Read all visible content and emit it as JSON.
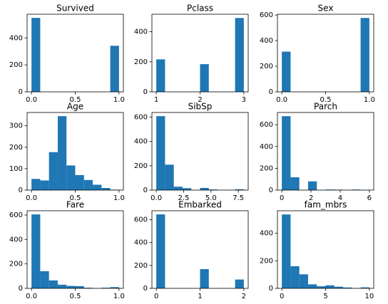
{
  "chart_data": [
    {
      "type": "histogram",
      "title": "Survived",
      "color": "#1f77b4",
      "bins": [
        0,
        0.1,
        0.2,
        0.3,
        0.4,
        0.5,
        0.6,
        0.7,
        0.8,
        0.9,
        1.0
      ],
      "counts": [
        549,
        0,
        0,
        0,
        0,
        0,
        0,
        0,
        0,
        342
      ],
      "xlim": [
        -0.05,
        1.05
      ],
      "xticks": [
        {
          "value": 0,
          "label": "0.0"
        },
        0.5,
        {
          "value": 1,
          "label": "1.0"
        }
      ],
      "ylim": [
        0,
        576
      ],
      "yticks": [
        0,
        200,
        400
      ]
    },
    {
      "type": "histogram",
      "title": "Pclass",
      "color": "#1f77b4",
      "bins": [
        1,
        1.2,
        1.4,
        1.6,
        1.8,
        2,
        2.2,
        2.4,
        2.6,
        2.8,
        3
      ],
      "counts": [
        216,
        0,
        0,
        0,
        0,
        184,
        0,
        0,
        0,
        491
      ],
      "xlim": [
        0.9,
        3.1
      ],
      "xticks": [
        1,
        2,
        3
      ],
      "ylim": [
        0,
        516
      ],
      "yticks": [
        0,
        200,
        400
      ]
    },
    {
      "type": "histogram",
      "title": "Sex",
      "color": "#1f77b4",
      "bins": [
        0,
        0.1,
        0.2,
        0.3,
        0.4,
        0.5,
        0.6,
        0.7,
        0.8,
        0.9,
        1.0
      ],
      "counts": [
        314,
        0,
        0,
        0,
        0,
        0,
        0,
        0,
        0,
        577
      ],
      "xlim": [
        -0.05,
        1.05
      ],
      "xticks": [
        {
          "value": 0,
          "label": "0.0"
        },
        0.5,
        {
          "value": 1,
          "label": "1.0"
        }
      ],
      "ylim": [
        0,
        606
      ],
      "yticks": [
        0,
        200,
        400,
        600
      ]
    },
    {
      "type": "histogram",
      "title": "Age",
      "color": "#1f77b4",
      "bins": [
        0,
        0.1,
        0.2,
        0.3,
        0.4,
        0.5,
        0.6,
        0.7,
        0.8,
        0.9,
        1.0
      ],
      "counts": [
        52,
        45,
        177,
        345,
        115,
        70,
        47,
        25,
        10,
        2
      ],
      "xlim": [
        -0.05,
        1.05
      ],
      "xticks": [
        {
          "value": 0,
          "label": "0.0"
        },
        0.5,
        {
          "value": 1,
          "label": "1.0"
        }
      ],
      "ylim": [
        0,
        362
      ],
      "yticks": [
        0,
        100,
        200,
        300
      ]
    },
    {
      "type": "histogram",
      "title": "SibSp",
      "color": "#1f77b4",
      "bins": [
        0,
        0.8,
        1.6,
        2.4,
        3.2,
        4.0,
        4.8,
        5.6,
        6.4,
        7.2,
        8.0
      ],
      "counts": [
        608,
        209,
        28,
        16,
        0,
        18,
        5,
        0,
        0,
        7
      ],
      "xlim": [
        -0.4,
        8.4
      ],
      "xticks": [
        {
          "value": 0,
          "label": "0.0"
        },
        2.5,
        {
          "value": 5,
          "label": "5.0"
        },
        7.5
      ],
      "ylim": [
        0,
        638
      ],
      "yticks": [
        0,
        200,
        400,
        600
      ]
    },
    {
      "type": "histogram",
      "title": "Parch",
      "color": "#1f77b4",
      "bins": [
        0,
        0.6,
        1.2,
        1.8,
        2.4,
        3.0,
        3.6,
        4.2,
        4.8,
        5.4,
        6.0
      ],
      "counts": [
        678,
        118,
        0,
        80,
        0,
        5,
        4,
        0,
        5,
        1
      ],
      "xlim": [
        -0.3,
        6.3
      ],
      "xticks": [
        0,
        2,
        4,
        6
      ],
      "ylim": [
        0,
        712
      ],
      "yticks": [
        0,
        200,
        400,
        600
      ]
    },
    {
      "type": "histogram",
      "title": "Fare",
      "color": "#1f77b4",
      "bins": [
        0,
        0.1,
        0.2,
        0.3,
        0.4,
        0.5,
        0.6,
        0.7,
        0.8,
        0.9,
        1.0
      ],
      "counts": [
        605,
        140,
        65,
        30,
        20,
        18,
        5,
        0,
        5,
        10
      ],
      "xlim": [
        -0.05,
        1.05
      ],
      "xticks": [
        {
          "value": 0,
          "label": "0.0"
        },
        0.5,
        {
          "value": 1,
          "label": "1.0"
        }
      ],
      "ylim": [
        0,
        635
      ],
      "yticks": [
        0,
        200,
        400,
        600
      ]
    },
    {
      "type": "histogram",
      "title": "Embarked",
      "color": "#1f77b4",
      "bins": [
        0,
        0.2,
        0.4,
        0.6,
        0.8,
        1.0,
        1.2,
        1.4,
        1.6,
        1.8,
        2.0
      ],
      "counts": [
        646,
        0,
        0,
        0,
        0,
        168,
        0,
        0,
        0,
        77
      ],
      "xlim": [
        -0.1,
        2.1
      ],
      "xticks": [
        0,
        1,
        2
      ],
      "ylim": [
        0,
        678
      ],
      "yticks": [
        0,
        200,
        400,
        600
      ]
    },
    {
      "type": "histogram",
      "title": "fam_mbrs",
      "color": "#1f77b4",
      "bins": [
        0,
        1,
        2,
        3,
        4,
        5,
        6,
        7,
        8,
        9,
        10
      ],
      "counts": [
        537,
        161,
        102,
        29,
        15,
        22,
        12,
        6,
        0,
        7
      ],
      "xlim": [
        -0.5,
        10.5
      ],
      "xticks": [
        0,
        5,
        10
      ],
      "ylim": [
        0,
        564
      ],
      "yticks": [
        0,
        200,
        400
      ]
    }
  ]
}
